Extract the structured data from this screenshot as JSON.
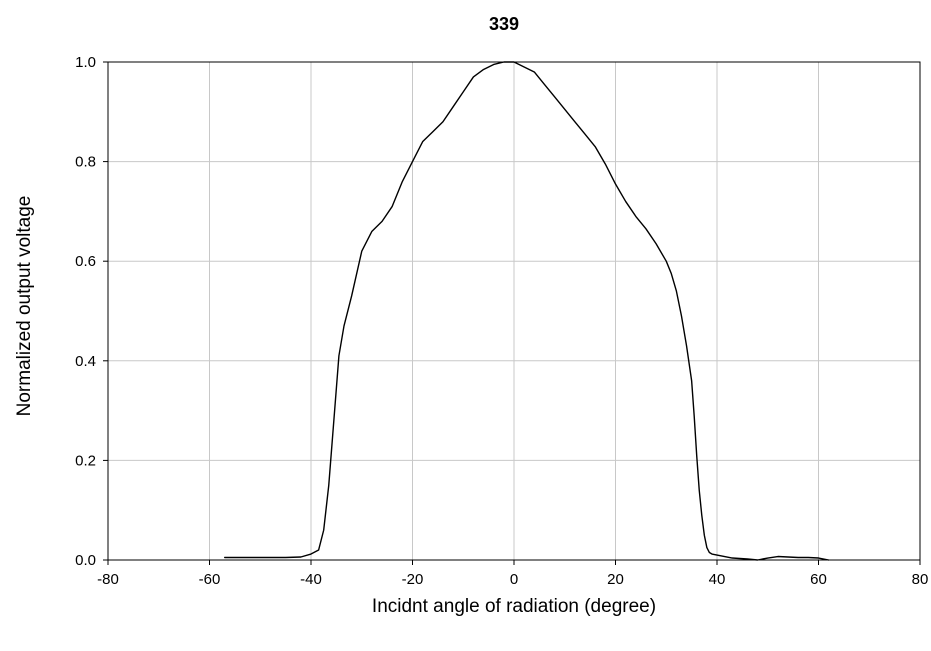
{
  "chart_data": {
    "type": "line",
    "title": "339",
    "xlabel": "Incidnt angle of radiation (degree)",
    "ylabel": "Normalized output voltage",
    "xlim": [
      -80,
      80
    ],
    "ylim": [
      0.0,
      1.0
    ],
    "xticks": [
      -80,
      -60,
      -40,
      -20,
      0,
      20,
      40,
      60,
      80
    ],
    "yticks": [
      0.0,
      0.2,
      0.4,
      0.6,
      0.8,
      1.0
    ],
    "xtick_labels": [
      "-80",
      "-60",
      "-40",
      "-20",
      "0",
      "20",
      "40",
      "60",
      "80"
    ],
    "ytick_labels": [
      "0.0",
      "0.2",
      "0.4",
      "0.6",
      "0.8",
      "1.0"
    ],
    "grid": true,
    "line_color": "#000000",
    "grid_color": "#c8c8c8",
    "series": [
      {
        "x": [
          -57,
          -50,
          -45,
          -42,
          -40,
          -38.5,
          -37.5,
          -36.5,
          -35.5,
          -34.5,
          -33.5,
          -32,
          -30,
          -28,
          -26,
          -24,
          -22,
          -20,
          -18,
          -16,
          -14,
          -12,
          -10,
          -8,
          -6,
          -4,
          -2,
          0,
          2,
          4,
          6,
          8,
          10,
          12,
          14,
          16,
          18,
          20,
          22,
          24,
          26,
          28,
          30,
          31,
          32,
          33,
          34,
          35,
          35.5,
          36,
          36.5,
          37,
          37.5,
          38,
          38.5,
          39,
          40,
          41,
          43,
          46,
          48,
          50,
          52,
          54,
          56,
          58,
          60,
          62
        ],
        "y": [
          0.005,
          0.005,
          0.005,
          0.006,
          0.012,
          0.02,
          0.06,
          0.15,
          0.28,
          0.41,
          0.47,
          0.53,
          0.62,
          0.66,
          0.68,
          0.71,
          0.76,
          0.8,
          0.84,
          0.86,
          0.88,
          0.91,
          0.94,
          0.97,
          0.985,
          0.995,
          1.0,
          1.0,
          0.99,
          0.98,
          0.955,
          0.93,
          0.905,
          0.88,
          0.855,
          0.83,
          0.795,
          0.755,
          0.72,
          0.69,
          0.665,
          0.635,
          0.6,
          0.575,
          0.54,
          0.49,
          0.43,
          0.36,
          0.29,
          0.21,
          0.14,
          0.09,
          0.05,
          0.025,
          0.015,
          0.012,
          0.01,
          0.008,
          0.004,
          0.002,
          0.0,
          0.004,
          0.007,
          0.006,
          0.005,
          0.005,
          0.004,
          0.0
        ]
      }
    ]
  }
}
